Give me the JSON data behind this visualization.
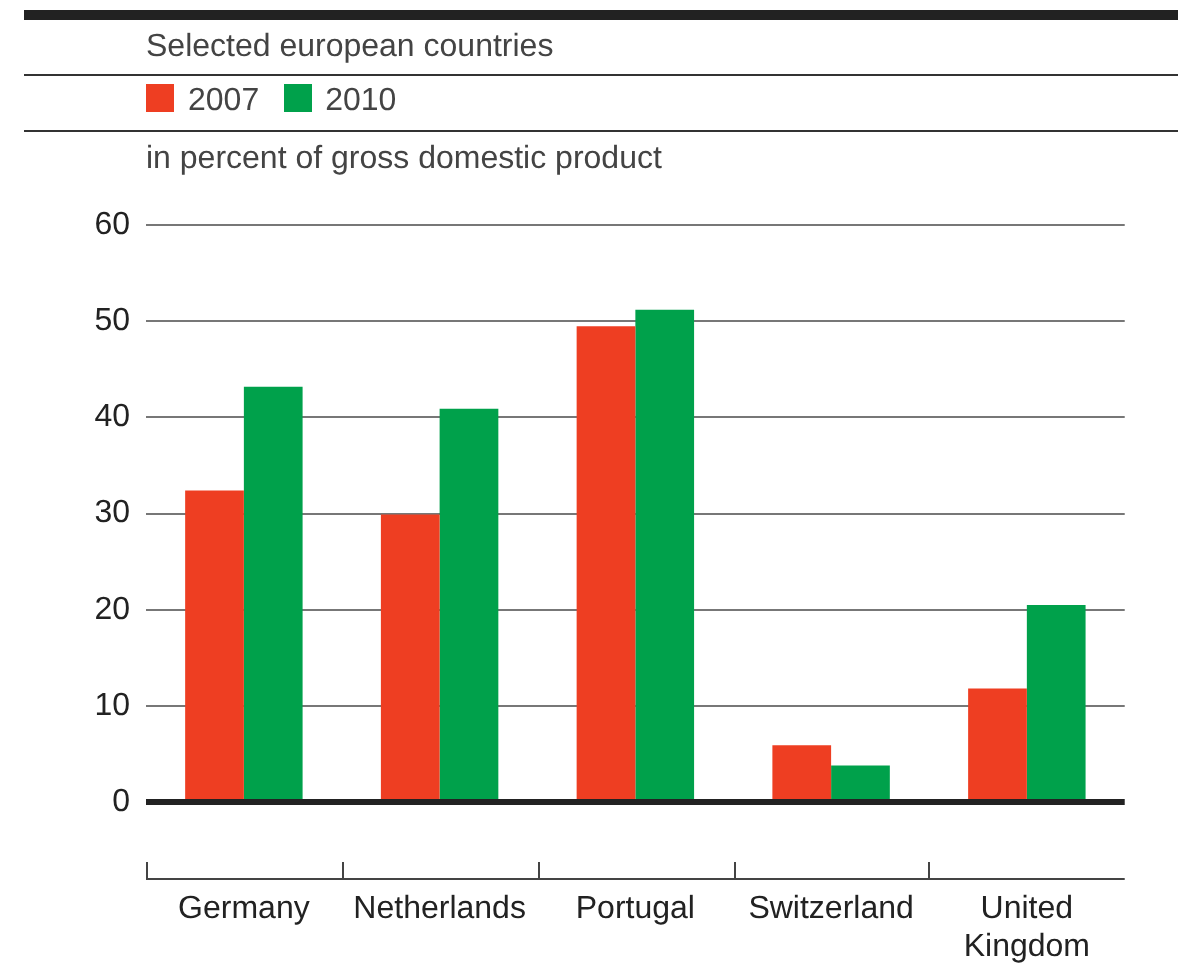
{
  "chart_data": {
    "type": "bar",
    "title": "Selected european countries",
    "ylabel": "in percent of gross domestic product",
    "categories": [
      "Germany",
      "Netherlands",
      "Portugal",
      "Switzerland",
      "United Kingdom"
    ],
    "series": [
      {
        "name": "2007",
        "color": "#ee3e22",
        "values": [
          32.4,
          29.9,
          49.5,
          5.9,
          11.8
        ]
      },
      {
        "name": "2010",
        "color": "#00a14b",
        "values": [
          43.2,
          40.9,
          51.2,
          3.8,
          20.5
        ]
      }
    ],
    "ylim": [
      0,
      60
    ],
    "yticks": [
      0,
      10,
      20,
      30,
      40,
      50,
      60
    ],
    "grid": "y",
    "legend": "top left"
  }
}
